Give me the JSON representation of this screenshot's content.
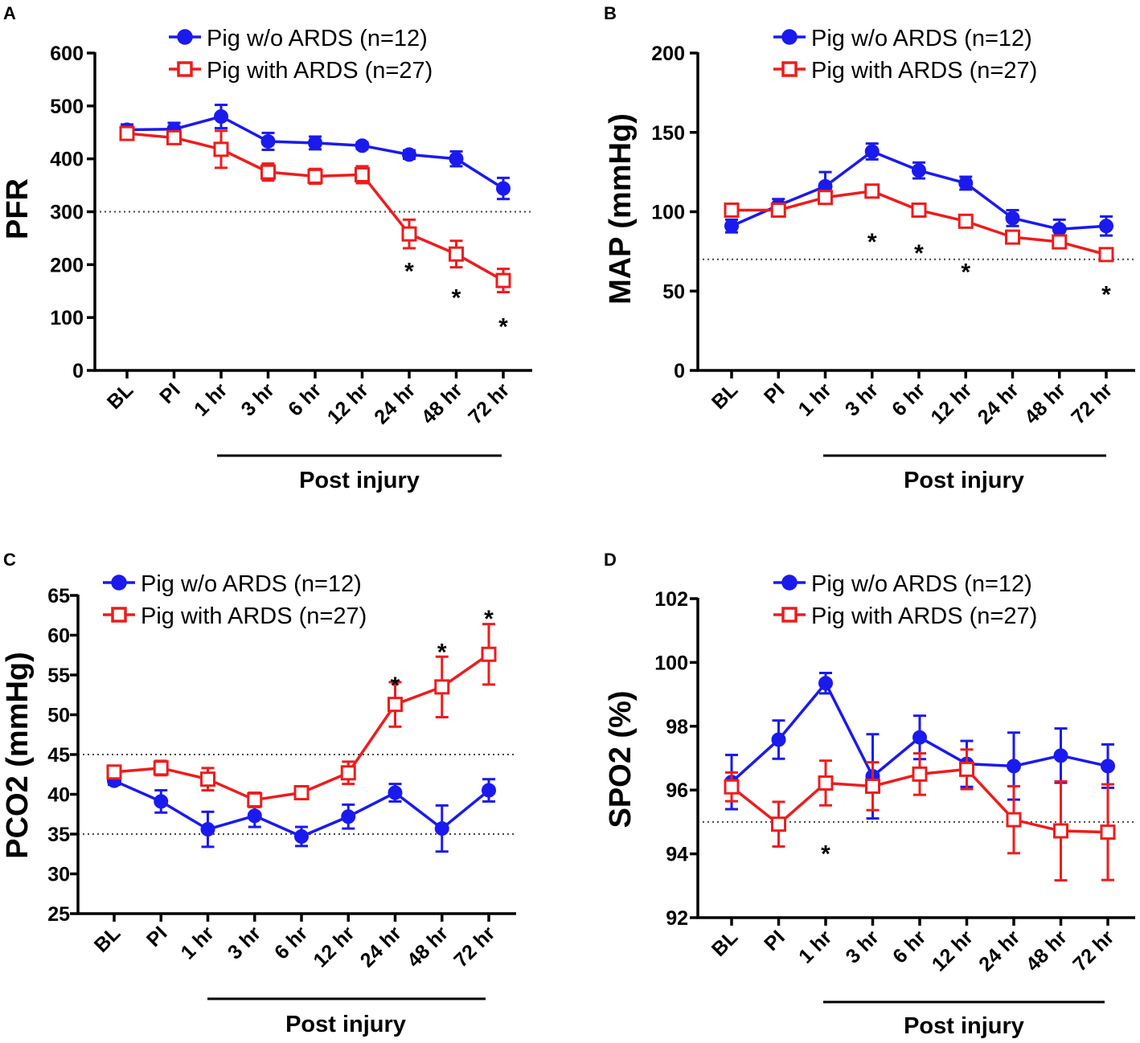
{
  "categories": [
    "BL",
    "PI",
    "1 hr",
    "3 hr",
    "6 hr",
    "12 hr",
    "24 hr",
    "48 hr",
    "72 hr"
  ],
  "colors": {
    "without": "#1a1aee",
    "with": "#ee1c1c",
    "axis": "#000000",
    "reference": "#444444"
  },
  "chart_data": [
    {
      "id": "A",
      "panel_letter": "A",
      "type": "line",
      "title": "",
      "ylabel": "PFR",
      "xlabel": "Post injury",
      "ylim": [
        0,
        600
      ],
      "yticks": [
        "0",
        "100",
        "200",
        "300",
        "400",
        "500",
        "600"
      ],
      "reference_lines": [
        300
      ],
      "legend_position": "top",
      "series": [
        {
          "name": "Pig w/o ARDS (n=12)",
          "marker": "filled-circle",
          "values": [
            455,
            456,
            480,
            433,
            430,
            425,
            408,
            400,
            344
          ],
          "errors": [
            10,
            12,
            22,
            16,
            12,
            6,
            8,
            14,
            20
          ]
        },
        {
          "name": "Pig with ARDS (n=27)",
          "marker": "open-square",
          "values": [
            448,
            440,
            418,
            375,
            367,
            370,
            258,
            220,
            170
          ],
          "errors": [
            8,
            10,
            35,
            16,
            14,
            16,
            27,
            25,
            22
          ]
        }
      ],
      "significance": [
        {
          "category": "24 hr",
          "y": 200
        },
        {
          "category": "48 hr",
          "y": 150
        },
        {
          "category": "72 hr",
          "y": 95
        }
      ]
    },
    {
      "id": "B",
      "panel_letter": "B",
      "type": "line",
      "title": "",
      "ylabel": "MAP (mmHg)",
      "xlabel": "Post injury",
      "ylim": [
        0,
        200
      ],
      "yticks": [
        "0",
        "50",
        "100",
        "150",
        "200"
      ],
      "reference_lines": [
        70
      ],
      "legend_position": "top",
      "series": [
        {
          "name": "Pig w/o ARDS (n=12)",
          "marker": "filled-circle",
          "values": [
            91,
            104,
            116,
            138,
            126,
            118,
            96,
            89,
            91
          ],
          "errors": [
            4,
            4,
            9,
            5,
            5,
            4,
            5,
            6,
            6
          ]
        },
        {
          "name": "Pig with ARDS (n=27)",
          "marker": "open-square",
          "values": [
            101,
            101,
            109,
            113,
            101,
            94,
            84,
            81,
            73
          ],
          "errors": [
            2,
            3,
            4,
            4,
            3,
            3,
            3,
            3,
            3
          ]
        }
      ],
      "significance": [
        {
          "category": "3 hr",
          "y": 85
        },
        {
          "category": "6 hr",
          "y": 78
        },
        {
          "category": "12 hr",
          "y": 66
        },
        {
          "category": "72 hr",
          "y": 52
        }
      ]
    },
    {
      "id": "C",
      "panel_letter": "C",
      "type": "line",
      "title": "",
      "ylabel": "PCO2 (mmHg)",
      "xlabel": "Post injury",
      "ylim": [
        25,
        65
      ],
      "yticks": [
        "25",
        "30",
        "35",
        "40",
        "45",
        "50",
        "55",
        "60",
        "65"
      ],
      "reference_lines": [
        35,
        45
      ],
      "legend_position": "top",
      "series": [
        {
          "name": "Pig w/o ARDS (n=12)",
          "marker": "filled-circle",
          "values": [
            41.7,
            39.1,
            35.6,
            37.3,
            34.7,
            37.2,
            40.2,
            35.7,
            40.5
          ],
          "errors": [
            0.5,
            1.4,
            2.2,
            1.4,
            1.2,
            1.5,
            1.1,
            2.9,
            1.4
          ]
        },
        {
          "name": "Pig with ARDS (n=27)",
          "marker": "open-square",
          "values": [
            42.8,
            43.3,
            41.9,
            39.3,
            40.2,
            42.7,
            51.3,
            53.5,
            57.6
          ],
          "errors": [
            0.6,
            0.9,
            1.4,
            0.9,
            0.8,
            1.4,
            2.8,
            3.8,
            3.8
          ]
        }
      ],
      "significance": [
        {
          "category": "24 hr",
          "y": 54.5
        },
        {
          "category": "48 hr",
          "y": 58.7
        },
        {
          "category": "72 hr",
          "y": 62.9
        }
      ]
    },
    {
      "id": "D",
      "panel_letter": "D",
      "type": "line",
      "title": "",
      "ylabel": "SPO2 (%)",
      "xlabel": "Post injury",
      "ylim": [
        92,
        102
      ],
      "yticks": [
        "92",
        "94",
        "96",
        "98",
        "100",
        "102"
      ],
      "reference_lines": [
        95
      ],
      "legend_position": "top",
      "series": [
        {
          "name": "Pig w/o ARDS (n=12)",
          "marker": "filled-circle",
          "values": [
            96.25,
            97.58,
            99.35,
            96.43,
            97.65,
            96.82,
            96.75,
            97.08,
            96.75
          ],
          "errors": [
            0.85,
            0.6,
            0.32,
            1.32,
            0.68,
            0.72,
            1.05,
            0.85,
            0.68
          ]
        },
        {
          "name": "Pig with ARDS (n=27)",
          "marker": "open-square",
          "values": [
            96.1,
            94.93,
            96.22,
            96.12,
            96.5,
            96.65,
            95.07,
            94.72,
            94.68
          ],
          "errors": [
            0.45,
            0.7,
            0.7,
            0.75,
            0.65,
            0.62,
            1.05,
            1.55,
            1.5
          ]
        }
      ],
      "significance": [
        {
          "category": "1 hr",
          "y": 94.2
        }
      ]
    }
  ]
}
